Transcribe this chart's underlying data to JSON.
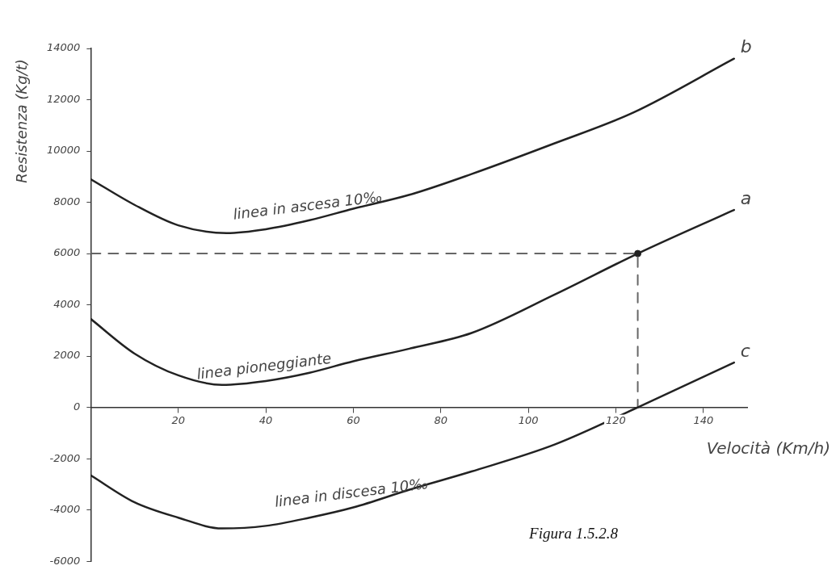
{
  "chart_data": {
    "type": "line",
    "xlabel": "Velocità (Km/h)",
    "ylabel": "Resistenza (Kg/t)",
    "xlim": [
      0,
      150
    ],
    "ylim": [
      -6000,
      14000
    ],
    "xticks": [
      20,
      40,
      60,
      80,
      100,
      120,
      140
    ],
    "yticks": [
      -6000,
      -4000,
      -2000,
      0,
      2000,
      4000,
      6000,
      8000,
      10000,
      12000,
      14000
    ],
    "grid": false,
    "legend": false,
    "marker": "none",
    "line_style": "solid",
    "series": [
      {
        "name": "b",
        "color": "#222222",
        "x": [
          0,
          10,
          20,
          31,
          40,
          50,
          60,
          73,
          87,
          106,
          124,
          147
        ],
        "values": [
          8900,
          7900,
          7100,
          6800,
          6950,
          7300,
          7750,
          8300,
          9100,
          10300,
          11500,
          13600
        ]
      },
      {
        "name": "a",
        "color": "#222222",
        "x": [
          0,
          10,
          20,
          30,
          40,
          50,
          60,
          73,
          87,
          106,
          125,
          147
        ],
        "values": [
          3450,
          2100,
          1250,
          880,
          1030,
          1350,
          1800,
          2300,
          2900,
          4400,
          6000,
          7700
        ]
      },
      {
        "name": "c",
        "color": "#222222",
        "x": [
          0,
          10,
          20,
          30,
          40,
          50,
          60,
          73,
          87,
          106,
          125,
          147
        ],
        "values": [
          -2650,
          -3700,
          -4300,
          -4720,
          -4620,
          -4300,
          -3900,
          -3200,
          -2500,
          -1450,
          0,
          1750
        ]
      },
      {
        "type": "line",
        "color": "#666666",
        "line_style": "dashed",
        "x": [
          0,
          125,
          125
        ],
        "values": [
          6000,
          6000,
          0
        ]
      },
      {
        "type": "scatter",
        "color": "#222222",
        "marker": "circle",
        "x": [
          125
        ],
        "values": [
          6000
        ]
      }
    ],
    "annotations": [
      {
        "text": "linea in ascesa 10‰",
        "x": 50,
        "y": 7300
      },
      {
        "text": "linea pioneggiante",
        "x": 40,
        "y": 1030
      },
      {
        "text": "linea in discesa 10‰",
        "x": 60,
        "y": -3900
      },
      "Figura 1.5.2.8"
    ]
  }
}
